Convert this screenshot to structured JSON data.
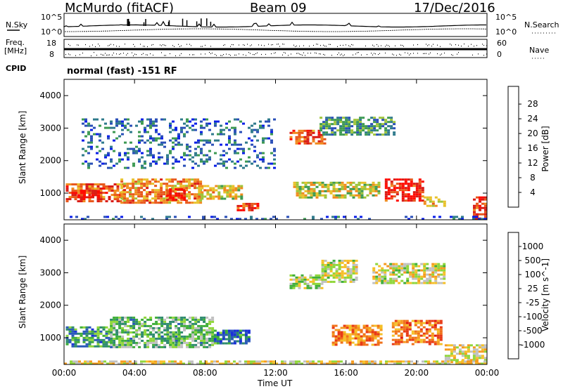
{
  "header": {
    "station": "McMurdo (fitACF)",
    "beam": "Beam 09",
    "date": "17/Dec/2016"
  },
  "status_panel": {
    "nsky_label": "N.Sky",
    "nsky_ticks": [
      "10^5",
      "10^0"
    ],
    "nsearch_label": "N.Search",
    "nsearch_ticks": [
      "10^5",
      "10^0"
    ],
    "freq_label": "Freq.",
    "freq_unit": "[MHz]",
    "freq_ticks": [
      "18",
      "8"
    ],
    "nave_label": "Nave",
    "nave_ticks": [
      "60",
      "0"
    ],
    "cpid_label": "CPID",
    "cpid_text": "normal (fast) -151 RF"
  },
  "chart_data": [
    {
      "type": "heatmap",
      "name": "power-panel",
      "ylabel": "Slant Range [km]",
      "xlabel": "",
      "x_ticks": [
        "00:00",
        "04:00",
        "08:00",
        "12:00",
        "16:00",
        "20:00",
        "00:00"
      ],
      "xlim_hours": [
        0,
        24
      ],
      "ylim_km": [
        180,
        4500
      ],
      "y_ticks": [
        1000,
        2000,
        3000,
        4000
      ],
      "colorbar": {
        "label": "Power [dB]",
        "ticks": [
          "4",
          "8",
          "12",
          "16",
          "20",
          "24",
          "28"
        ],
        "colors": [
          "#0a1fe8",
          "#2a4fb8",
          "#2f7a8c",
          "#3d9a52",
          "#9ec43a",
          "#e8c12a",
          "#f08a1e",
          "#e8561a",
          "#d91a14",
          "#ff0a00"
        ]
      },
      "echo_regions": [
        {
          "t0": 0.1,
          "t1": 3.4,
          "r0": 780,
          "r1": 1300,
          "level": 0.75
        },
        {
          "t0": 0.6,
          "t1": 2.0,
          "r0": 850,
          "r1": 1100,
          "level": 0.95
        },
        {
          "t0": 3.2,
          "t1": 7.8,
          "r0": 720,
          "r1": 1450,
          "level": 0.65
        },
        {
          "t0": 5.8,
          "t1": 6.8,
          "r0": 800,
          "r1": 1150,
          "level": 0.9
        },
        {
          "t0": 7.6,
          "t1": 10.0,
          "r0": 800,
          "r1": 1250,
          "level": 0.55
        },
        {
          "t0": 9.8,
          "t1": 11.0,
          "r0": 500,
          "r1": 700,
          "level": 0.85
        },
        {
          "t0": 12.8,
          "t1": 14.8,
          "r0": 2500,
          "r1": 2950,
          "level": 0.75
        },
        {
          "t0": 13.0,
          "t1": 17.8,
          "r0": 850,
          "r1": 1350,
          "level": 0.5
        },
        {
          "t0": 14.5,
          "t1": 18.8,
          "r0": 2800,
          "r1": 3350,
          "level": 0.3
        },
        {
          "t0": 18.2,
          "t1": 20.4,
          "r0": 800,
          "r1": 1450,
          "level": 0.85
        },
        {
          "t0": 20.4,
          "t1": 21.6,
          "r0": 600,
          "r1": 900,
          "level": 0.55
        },
        {
          "t0": 23.2,
          "t1": 24.0,
          "r0": 200,
          "r1": 900,
          "level": 0.8
        },
        {
          "t0": 0.0,
          "t1": 24.0,
          "r0": 180,
          "r1": 300,
          "level": 0.15
        },
        {
          "t0": 1.0,
          "t1": 12.0,
          "r0": 1800,
          "r1": 3300,
          "level": 0.2
        }
      ]
    },
    {
      "type": "heatmap",
      "name": "velocity-panel",
      "ylabel": "Slant Range [km]",
      "xlabel": "Time UT",
      "x_ticks": [
        "00:00",
        "04:00",
        "08:00",
        "12:00",
        "16:00",
        "20:00",
        "00:00"
      ],
      "xlim_hours": [
        0,
        24
      ],
      "ylim_km": [
        180,
        4500
      ],
      "y_ticks": [
        1000,
        2000,
        3000,
        4000
      ],
      "colorbar": {
        "label": "Velocity [m s^-1]",
        "ticks": [
          "1000",
          "500",
          "100",
          "25",
          "-25",
          "-100",
          "-500",
          "-1000"
        ],
        "colors": [
          "#1a2fd8",
          "#2a5ab8",
          "#2e8a6e",
          "#3fae3a",
          "#8fd63a",
          "#c0c0c0",
          "#f5c028",
          "#f59a1e",
          "#f0701a",
          "#e83a16",
          "#e0140f"
        ]
      },
      "echo_regions": [
        {
          "t0": 0.1,
          "t1": 2.6,
          "r0": 750,
          "r1": 1350,
          "level": 0.25
        },
        {
          "t0": 2.6,
          "t1": 8.5,
          "r0": 700,
          "r1": 1650,
          "level": 0.35
        },
        {
          "t0": 5.5,
          "t1": 6.5,
          "r0": 850,
          "r1": 1200,
          "level": 0.3
        },
        {
          "t0": 8.5,
          "t1": 10.5,
          "r0": 800,
          "r1": 1250,
          "level": 0.2
        },
        {
          "t0": 12.8,
          "t1": 14.6,
          "r0": 2500,
          "r1": 2950,
          "level": 0.45
        },
        {
          "t0": 14.6,
          "t1": 16.6,
          "r0": 2700,
          "r1": 3400,
          "level": 0.5
        },
        {
          "t0": 15.2,
          "t1": 18.0,
          "r0": 800,
          "r1": 1400,
          "level": 0.72
        },
        {
          "t0": 18.6,
          "t1": 21.4,
          "r0": 800,
          "r1": 1550,
          "level": 0.75
        },
        {
          "t0": 17.5,
          "t1": 21.5,
          "r0": 2700,
          "r1": 3300,
          "level": 0.5
        },
        {
          "t0": 21.6,
          "t1": 24.0,
          "r0": 180,
          "r1": 800,
          "level": 0.55
        },
        {
          "t0": 0.0,
          "t1": 24.0,
          "r0": 180,
          "r1": 300,
          "level": 0.55
        }
      ]
    }
  ]
}
